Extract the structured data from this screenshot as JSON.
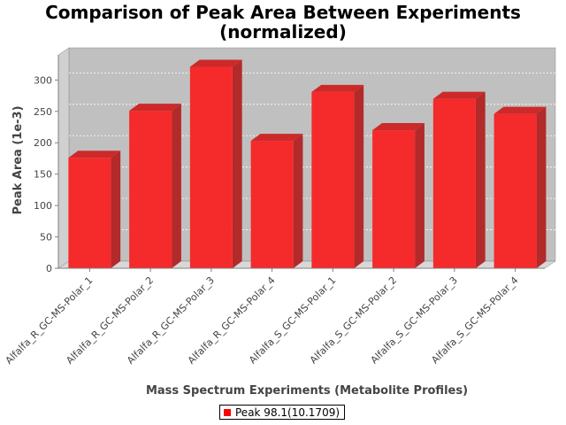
{
  "chart_data": {
    "type": "bar",
    "title_lines": [
      "Comparison of Peak Area Between Experiments",
      "(normalized)"
    ],
    "xlabel": "Mass Spectrum Experiments (Metabolite Profiles)",
    "ylabel": "Peak Area (1e-3)",
    "categories": [
      "Alfalfa_R_GC-MS-Polar_1",
      "Alfalfa_R_GC-MS-Polar_2",
      "Alfalfa_R_GC-MS-Polar_3",
      "Alfalfa_R_GC-MS-Polar_4",
      "Alfalfa_S_GC-MS-Polar_1",
      "Alfalfa_S_GC-MS-Polar_2",
      "Alfalfa_S_GC-MS-Polar_3",
      "Alfalfa_S_GC-MS-Polar_4"
    ],
    "series": [
      {
        "name": "Peak 98.1(10.1709)",
        "color": "#ff0000",
        "values": [
          176,
          251,
          321,
          203,
          281,
          220,
          270,
          246
        ]
      }
    ],
    "ylim": [
      0,
      340
    ],
    "yticks": [
      0,
      50,
      100,
      150,
      200,
      250,
      300
    ],
    "ytick_labels": [
      "0",
      "50",
      "100",
      "150",
      "200",
      "250",
      "300"
    ],
    "grid": true,
    "legend_position": "bottom-center",
    "style": "3d",
    "plot_background": "#c0c0c0"
  }
}
